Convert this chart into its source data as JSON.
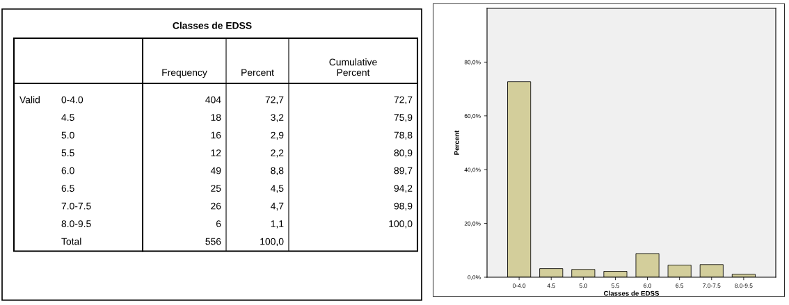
{
  "chart_data": [
    {
      "type": "other",
      "title": "Classes de EDSS",
      "categories": [
        "0-4.0",
        "4.5",
        "5.0",
        "5.5",
        "6.0",
        "6.5",
        "7.0-7.5",
        "8.0-9.5",
        "Total"
      ],
      "annotations": [
        "Valid",
        "Frequency",
        "Percent",
        "Cumulative Percent",
        "404",
        "72,7",
        "72,7",
        "18",
        "3,2",
        "75,9",
        "16",
        "2,9",
        "78,8",
        "12",
        "2,2",
        "80,9",
        "49",
        "8,8",
        "89,7",
        "25",
        "4,5",
        "94,2",
        "26",
        "4,7",
        "98,9",
        "6",
        "1,1",
        "100,0",
        "556",
        "100,0"
      ]
    },
    {
      "type": "bar",
      "xlabel": "Classes de EDSS",
      "ylabel": "Percent",
      "color": "#d3ce9b",
      "grid": false,
      "categories": [
        "0-4.0",
        "4.5",
        "5.0",
        "5.5",
        "6.0",
        "6.5",
        "7.0-7.5",
        "8.0-9.5"
      ],
      "values": [
        72.7,
        3.2,
        2.9,
        2.2,
        8.8,
        4.5,
        4.7,
        1.1
      ],
      "ylim": [
        0,
        100
      ],
      "yticks": [
        {
          "value": 0,
          "label": "0,0%"
        },
        {
          "value": 20,
          "label": "20,0%"
        },
        {
          "value": 40,
          "label": "40,0%"
        },
        {
          "value": 60,
          "label": "60,0%"
        },
        {
          "value": 80,
          "label": "80,0%"
        }
      ]
    }
  ]
}
